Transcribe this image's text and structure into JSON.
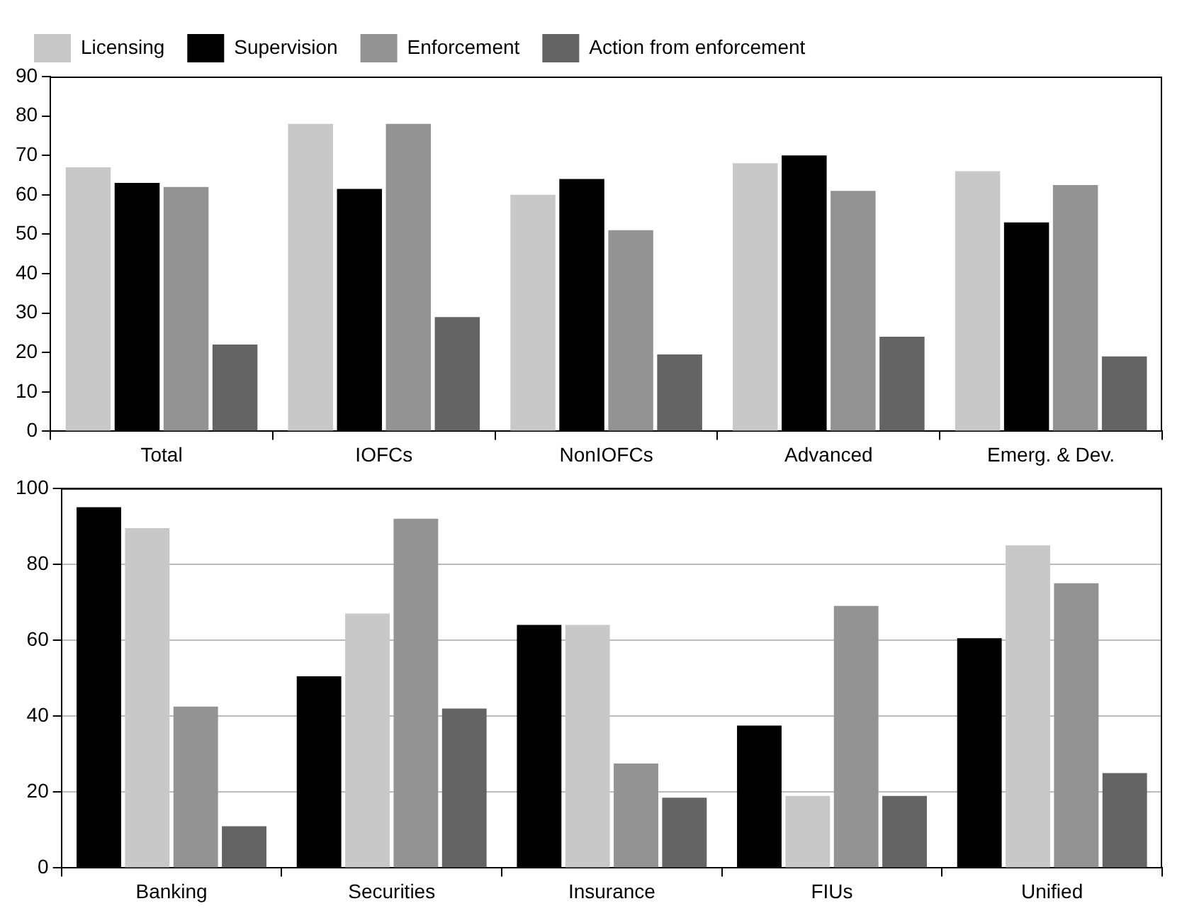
{
  "chart_data": [
    {
      "type": "bar",
      "categories": [
        "Total",
        "IOFCs",
        "NonIOFCs",
        "Advanced",
        "Emerg. & Dev."
      ],
      "legend": "top",
      "ylim": [
        0,
        90
      ],
      "yticks": [
        0,
        10,
        20,
        30,
        40,
        50,
        60,
        70,
        80,
        90
      ],
      "series": [
        {
          "name": "Licensing",
          "color": "#c8c8c8",
          "values": [
            67,
            78,
            60,
            68,
            66
          ]
        },
        {
          "name": "Supervision",
          "color": "#000000",
          "values": [
            63,
            61.5,
            64,
            70,
            53
          ]
        },
        {
          "name": "Enforcement",
          "color": "#939393",
          "values": [
            62,
            78,
            51,
            61,
            62.5
          ]
        },
        {
          "name": "Action from enforcement",
          "color": "#646464",
          "values": [
            22,
            29,
            19.5,
            24,
            19
          ]
        }
      ]
    },
    {
      "type": "bar",
      "categories": [
        "Banking",
        "Securities",
        "Insurance",
        "FIUs",
        "Unified"
      ],
      "grid": "y",
      "ylim": [
        0,
        100
      ],
      "yticks": [
        0,
        20,
        40,
        60,
        80,
        100
      ],
      "series": [
        {
          "color": "#000000",
          "values": [
            95,
            50.5,
            64,
            37.5,
            60.5
          ]
        },
        {
          "color": "#c8c8c8",
          "values": [
            89.5,
            67,
            64,
            19,
            85
          ]
        },
        {
          "color": "#939393",
          "values": [
            42.5,
            92,
            27.5,
            69,
            75
          ]
        },
        {
          "color": "#646464",
          "values": [
            11,
            42,
            18.5,
            19,
            25
          ]
        }
      ]
    }
  ]
}
